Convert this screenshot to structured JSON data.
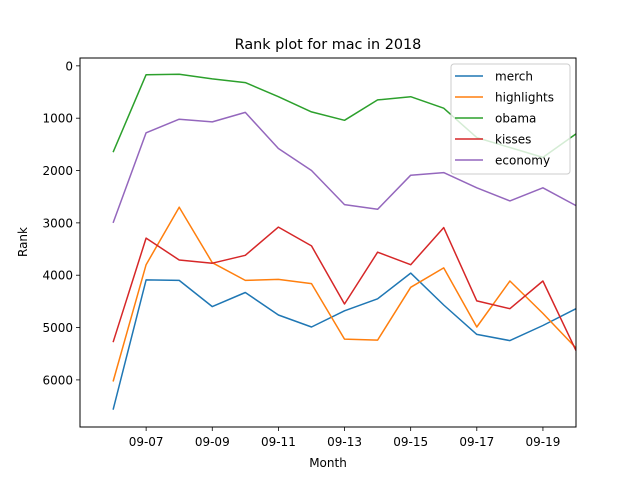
{
  "chart_data": {
    "type": "line",
    "title": "Rank plot for mac in 2018",
    "xlabel": "Month",
    "ylabel": "Rank",
    "y_inverted": true,
    "ylim": [
      6900,
      -150
    ],
    "xlim": [
      "2018-09-05",
      "2018-09-20"
    ],
    "y_ticks": [
      0,
      1000,
      2000,
      3000,
      4000,
      5000,
      6000
    ],
    "x_ticks": [
      "09-07",
      "09-09",
      "09-11",
      "09-13",
      "09-15",
      "09-17",
      "09-19"
    ],
    "x": [
      "2018-09-06",
      "2018-09-07",
      "2018-09-08",
      "2018-09-09",
      "2018-09-10",
      "2018-09-11",
      "2018-09-12",
      "2018-09-13",
      "2018-09-14",
      "2018-09-15",
      "2018-09-16",
      "2018-09-17",
      "2018-09-18",
      "2018-09-19",
      "2018-09-20"
    ],
    "legend_position": "top-right",
    "grid": false,
    "series": [
      {
        "name": "merch",
        "color": "#1f77b4",
        "values": [
          6570,
          4090,
          4100,
          4600,
          4330,
          4760,
          4990,
          4680,
          4450,
          3960,
          4570,
          5130,
          5250,
          4960,
          4640
        ]
      },
      {
        "name": "highlights",
        "color": "#ff7f0e",
        "values": [
          6030,
          3800,
          2700,
          3760,
          4100,
          4080,
          4160,
          5220,
          5240,
          4230,
          3860,
          4990,
          4110,
          4730,
          5390
        ]
      },
      {
        "name": "obama",
        "color": "#2ca02c",
        "values": [
          1650,
          170,
          160,
          250,
          320,
          590,
          880,
          1040,
          650,
          590,
          810,
          1370,
          1560,
          1750,
          1300
        ]
      },
      {
        "name": "kisses",
        "color": "#d62728",
        "values": [
          5280,
          3290,
          3710,
          3770,
          3620,
          3080,
          3440,
          4550,
          3560,
          3800,
          3090,
          4490,
          4640,
          4110,
          5440
        ]
      },
      {
        "name": "economy",
        "color": "#9467bd",
        "values": [
          3000,
          1280,
          1020,
          1070,
          890,
          1580,
          2000,
          2650,
          2740,
          2090,
          2040,
          2330,
          2580,
          2330,
          2670
        ]
      }
    ]
  }
}
